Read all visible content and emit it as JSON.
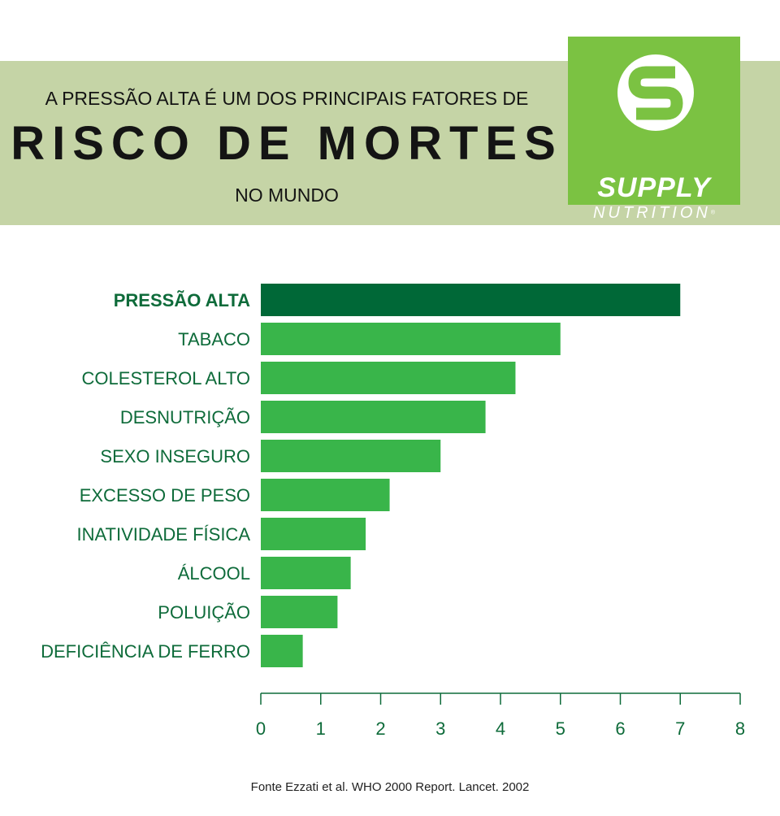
{
  "header": {
    "line1": "A PRESSÃO ALTA É UM DOS PRINCIPAIS FATORES DE",
    "line2": "RISCO DE MORTES",
    "line3": "NO MUNDO"
  },
  "logo": {
    "word1": "SUPPLY",
    "word2": "NUTRITION",
    "registered_mark": "®"
  },
  "colors": {
    "banner_bg": "#c5d4a6",
    "logo_bg": "#7bc242",
    "bar_highlight": "#006837",
    "bar_default": "#39b54a",
    "label_text": "#0e6b3a",
    "axis": "#0e6b3a"
  },
  "chart_data": {
    "type": "bar",
    "orientation": "horizontal",
    "title": "",
    "xlabel": "",
    "ylabel": "",
    "categories": [
      "PRESSÃO ALTA",
      "TABACO",
      "COLESTEROL ALTO",
      "DESNUTRIÇÃO",
      "SEXO INSEGURO",
      "EXCESSO DE PESO",
      "INATIVIDADE FÍSICA",
      "ÁLCOOL",
      "POLUIÇÃO",
      "DEFICIÊNCIA DE FERRO"
    ],
    "values": [
      7.0,
      5.0,
      4.25,
      3.75,
      3.0,
      2.15,
      1.75,
      1.5,
      1.28,
      0.7
    ],
    "highlight_index": 0,
    "xlim": [
      0,
      8
    ],
    "xticks": [
      "0",
      "1",
      "2",
      "3",
      "4",
      "5",
      "6",
      "7",
      "8"
    ],
    "grid": false,
    "legend": "none"
  },
  "source": "Fonte Ezzati et al. WHO 2000 Report. Lancet. 2002"
}
